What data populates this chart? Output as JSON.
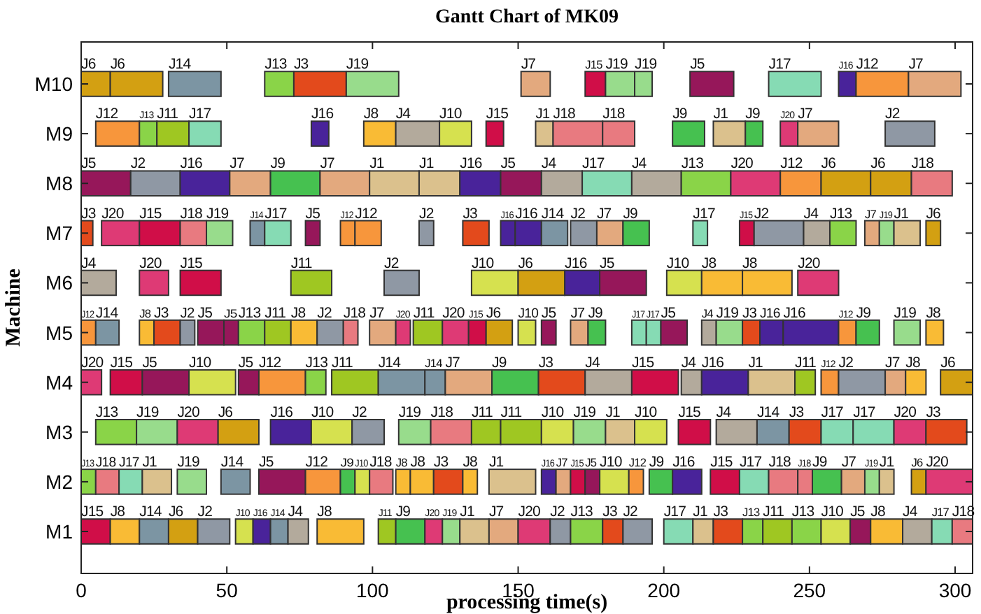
{
  "chart_data": {
    "type": "bar",
    "orientation": "horizontal",
    "title": "Gantt Chart of MK09",
    "xlabel": "processing time(s)",
    "ylabel": "Machine",
    "categories": [
      "M10",
      "M9",
      "M8",
      "M7",
      "M6",
      "M5",
      "M4",
      "M3",
      "M2",
      "M1"
    ],
    "xlim": [
      0,
      306
    ],
    "xticks": [
      0,
      50,
      100,
      150,
      200,
      250,
      300
    ],
    "series": [
      {
        "base": [
          0,
          5,
          0,
          0,
          0,
          0,
          0,
          5,
          0,
          0
        ],
        "values": [
          10,
          15,
          17,
          4,
          12,
          5,
          7,
          14,
          5,
          10
        ],
        "value_labels": [
          "J6",
          "J12",
          "J5",
          "J3",
          "J4",
          "J12",
          "J20",
          "J13",
          "J13",
          "J15"
        ],
        "colors": [
          "#d3a012",
          "#f7963c",
          "#96175a",
          "#e34a1c",
          "#b3aa9c",
          "#f7963c",
          "#de3a75",
          "#8ad448",
          "#8ad448",
          "#d00e48"
        ]
      },
      {
        "base": [
          10,
          20,
          17,
          7,
          20,
          5,
          10,
          19,
          5,
          10
        ],
        "values": [
          18,
          6,
          17,
          13,
          10,
          8,
          11,
          14,
          8,
          10
        ],
        "value_labels": [
          "J6",
          "J13",
          "J2",
          "J20",
          "J20",
          "J14",
          "J15",
          "J19",
          "J18",
          "J8"
        ],
        "colors": [
          "#d3a012",
          "#8ad448",
          "#8f98a4",
          "#de3a75",
          "#de3a75",
          "#7c95a3",
          "#d00e48",
          "#98dc8c",
          "#e87a80",
          "#f9bb35"
        ]
      },
      {
        "base": [
          30,
          26,
          34,
          20,
          34,
          20,
          21,
          33,
          13,
          20
        ],
        "values": [
          18,
          11,
          17,
          14,
          14,
          5,
          16,
          14,
          8,
          10
        ],
        "value_labels": [
          "J14",
          "J11",
          "J16",
          "J15",
          "J15",
          "J8",
          "J5",
          "J20",
          "J17",
          "J14"
        ],
        "colors": [
          "#7c95a3",
          "#9fc722",
          "#49239a",
          "#d00e48",
          "#d00e48",
          "#f9bb35",
          "#96175a",
          "#de3a75",
          "#86dbb4",
          "#7c95a3"
        ]
      },
      {
        "base": [
          63,
          37,
          51,
          34,
          72,
          25,
          37,
          47,
          21,
          30
        ],
        "values": [
          10,
          11,
          14,
          9,
          14,
          9,
          16,
          14,
          10,
          10
        ],
        "value_labels": [
          "J13",
          "J17",
          "J7",
          "J18",
          "J11",
          "J3",
          "J10",
          "J6",
          "J1",
          "J6"
        ],
        "colors": [
          "#8ad448",
          "#86dbb4",
          "#e3a97e",
          "#e87a80",
          "#9fc722",
          "#e34a1c",
          "#d6e14f",
          "#d3a012",
          "#dbc18d",
          "#d3a012"
        ]
      },
      {
        "base": [
          73,
          79,
          65,
          43,
          104,
          34,
          54,
          65,
          33,
          40
        ],
        "values": [
          18,
          6,
          17,
          9,
          12,
          5,
          7,
          14,
          10,
          11
        ],
        "value_labels": [
          "J3",
          "J16",
          "J9",
          "J19",
          "J2",
          "J2",
          "J5",
          "J16",
          "J19",
          "J2"
        ],
        "colors": [
          "#e34a1c",
          "#49239a",
          "#46c150",
          "#98dc8c",
          "#8f98a4",
          "#8f98a4",
          "#96175a",
          "#49239a",
          "#98dc8c",
          "#8f98a4"
        ]
      },
      {
        "base": [
          91,
          97,
          82,
          58,
          134,
          40,
          61,
          79,
          48,
          53
        ],
        "values": [
          18,
          11,
          17,
          5,
          16,
          9,
          16,
          14,
          10,
          6
        ],
        "value_labels": [
          "J19",
          "J8",
          "J7",
          "J14",
          "J10",
          "J5",
          "J12",
          "J10",
          "J14",
          "J10"
        ],
        "colors": [
          "#98dc8c",
          "#f9bb35",
          "#e3a97e",
          "#7c95a3",
          "#d6e14f",
          "#96175a",
          "#f7963c",
          "#d6e14f",
          "#7c95a3",
          "#d6e14f"
        ]
      },
      {
        "base": [
          151,
          108,
          99,
          63,
          150,
          49,
          77,
          93,
          61,
          59
        ],
        "values": [
          10,
          15,
          17,
          9,
          16,
          5,
          7,
          11,
          16,
          6
        ],
        "value_labels": [
          "J7",
          "J4",
          "J1",
          "J17",
          "J6",
          "J5",
          "J13",
          "J2",
          "J5",
          "J16"
        ],
        "colors": [
          "#e3a97e",
          "#b3aa9c",
          "#dbc18d",
          "#86dbb4",
          "#d3a012",
          "#96175a",
          "#8ad448",
          "#8f98a4",
          "#96175a",
          "#49239a"
        ]
      },
      {
        "base": [
          173,
          123,
          116,
          77,
          166,
          54,
          86,
          109,
          77,
          65
        ],
        "values": [
          7,
          11,
          14,
          5,
          12,
          9,
          16,
          11,
          12,
          6
        ],
        "value_labels": [
          "J15",
          "J10",
          "J1",
          "J5",
          "J16",
          "J13",
          "J11",
          "J19",
          "J12",
          "J14"
        ],
        "colors": [
          "#d00e48",
          "#d6e14f",
          "#dbc18d",
          "#96175a",
          "#49239a",
          "#8ad448",
          "#9fc722",
          "#98dc8c",
          "#f7963c",
          "#7c95a3"
        ]
      },
      {
        "base": [
          180,
          139,
          130,
          89,
          178,
          63,
          102,
          120,
          89,
          71
        ],
        "values": [
          10,
          6,
          14,
          5,
          16,
          9,
          16,
          14,
          5,
          7
        ],
        "value_labels": [
          "J19",
          "J15",
          "J16",
          "J12",
          "J5",
          "J11",
          "J14",
          "J18",
          "J9",
          "J4"
        ],
        "colors": [
          "#98dc8c",
          "#d00e48",
          "#49239a",
          "#f7963c",
          "#96175a",
          "#9fc722",
          "#7c95a3",
          "#e87a80",
          "#46c150",
          "#b3aa9c"
        ]
      },
      {
        "base": [
          190,
          156,
          144,
          94,
          201,
          72,
          118,
          134,
          94,
          81
        ],
        "values": [
          6,
          6,
          14,
          9,
          12,
          9,
          7,
          10,
          5,
          16
        ],
        "value_labels": [
          "J19",
          "J1",
          "J5",
          "J12",
          "J10",
          "J8",
          "J14",
          "J11",
          "J10",
          "J8"
        ],
        "colors": [
          "#98dc8c",
          "#dbc18d",
          "#96175a",
          "#f7963c",
          "#d6e14f",
          "#f9bb35",
          "#7c95a3",
          "#9fc722",
          "#d6e14f",
          "#f9bb35"
        ]
      },
      {
        "base": [
          209,
          162,
          158,
          116,
          213,
          81,
          125,
          144,
          99,
          102
        ],
        "values": [
          15,
          17,
          14,
          5,
          14,
          9,
          16,
          14,
          8,
          6
        ],
        "value_labels": [
          "J5",
          "J18",
          "J4",
          "J2",
          "J8",
          "J2",
          "J7",
          "J11",
          "J18",
          "J11"
        ],
        "colors": [
          "#96175a",
          "#e87a80",
          "#b3aa9c",
          "#8f98a4",
          "#f9bb35",
          "#8f98a4",
          "#e3a97e",
          "#9fc722",
          "#e87a80",
          "#9fc722"
        ]
      },
      {
        "base": [
          236,
          179,
          172,
          131,
          227,
          90,
          141,
          158,
          108,
          108
        ],
        "values": [
          18,
          11,
          17,
          9,
          17,
          5,
          16,
          11,
          5,
          10
        ],
        "value_labels": [
          "J17",
          "J18",
          "J17",
          "J3",
          "J8",
          "J18",
          "J9",
          "J10",
          "J8",
          "J9"
        ],
        "colors": [
          "#86dbb4",
          "#e87a80",
          "#86dbb4",
          "#e34a1c",
          "#f9bb35",
          "#e87a80",
          "#46c150",
          "#d6e14f",
          "#f9bb35",
          "#46c150"
        ]
      },
      {
        "base": [
          260,
          203,
          189,
          144,
          246,
          99,
          157,
          169,
          113,
          118
        ],
        "values": [
          6,
          11,
          17,
          5,
          14,
          9,
          16,
          11,
          8,
          6
        ],
        "value_labels": [
          "J16",
          "J9",
          "J4",
          "J16",
          "J20",
          "J7",
          "J3",
          "J19",
          "J8",
          "J20"
        ],
        "colors": [
          "#49239a",
          "#46c150",
          "#b3aa9c",
          "#49239a",
          "#de3a75",
          "#e3a97e",
          "#e34a1c",
          "#98dc8c",
          "#f9bb35",
          "#de3a75"
        ]
      },
      {
        "base": [
          266,
          217,
          206,
          149,
          null,
          108,
          173,
          180,
          121,
          124
        ],
        "values": [
          18,
          11,
          17,
          9,
          null,
          5,
          16,
          10,
          10,
          6
        ],
        "value_labels": [
          "J12",
          "J1",
          "J13",
          "J16",
          null,
          "J20",
          "J4",
          "J1",
          "J3",
          "J19"
        ],
        "colors": [
          "#f7963c",
          "#dbc18d",
          "#8ad448",
          "#49239a",
          null,
          "#de3a75",
          "#b3aa9c",
          "#dbc18d",
          "#e34a1c",
          "#98dc8c"
        ]
      },
      {
        "base": [
          284,
          228,
          223,
          158,
          null,
          114,
          189,
          190,
          131,
          130
        ],
        "values": [
          18,
          6,
          17,
          9,
          null,
          10,
          16,
          11,
          5,
          10
        ],
        "value_labels": [
          "J7",
          "J9",
          "J20",
          "J14",
          null,
          "J11",
          "J15",
          "J10",
          "J8",
          "J1"
        ],
        "colors": [
          "#e3a97e",
          "#46c150",
          "#de3a75",
          "#7c95a3",
          null,
          "#9fc722",
          "#d00e48",
          "#d6e14f",
          "#f9bb35",
          "#dbc18d"
        ]
      },
      {
        "base": [
          null,
          240,
          240,
          168,
          null,
          124,
          206,
          205,
          140,
          140
        ],
        "values": [
          null,
          6,
          14,
          9,
          null,
          9,
          7,
          11,
          16,
          10
        ],
        "value_labels": [
          null,
          "J20",
          "J12",
          "J2",
          null,
          "J20",
          "J4",
          "J15",
          "J1",
          "J7"
        ],
        "colors": [
          null,
          "#de3a75",
          "#f7963c",
          "#8f98a4",
          null,
          "#de3a75",
          "#b3aa9c",
          "#d00e48",
          "#dbc18d",
          "#e3a97e"
        ]
      },
      {
        "base": [
          null,
          246,
          254,
          177,
          null,
          133,
          213,
          218,
          158,
          150
        ],
        "values": [
          null,
          14,
          17,
          9,
          null,
          6,
          16,
          14,
          5,
          11
        ],
        "value_labels": [
          null,
          "J7",
          "J6",
          "J7",
          null,
          "J15",
          "J16",
          "J4",
          "J16",
          "J20"
        ],
        "colors": [
          null,
          "#e3a97e",
          "#d3a012",
          "#e3a97e",
          null,
          "#d00e48",
          "#49239a",
          "#b3aa9c",
          "#49239a",
          "#de3a75"
        ]
      },
      {
        "base": [
          null,
          276,
          271,
          186,
          null,
          139,
          229,
          232,
          163,
          161
        ],
        "values": [
          null,
          17,
          14,
          9,
          null,
          9,
          16,
          11,
          5,
          7
        ],
        "value_labels": [
          null,
          "J2",
          "J6",
          "J9",
          null,
          "J6",
          "J1",
          "J14",
          "J7",
          "J2"
        ],
        "colors": [
          null,
          "#8f98a4",
          "#d3a012",
          "#46c150",
          null,
          "#d3a012",
          "#dbc18d",
          "#7c95a3",
          "#e3a97e",
          "#8f98a4"
        ]
      },
      {
        "base": [
          null,
          null,
          285,
          210,
          null,
          150,
          245,
          243,
          168,
          168
        ],
        "values": [
          null,
          null,
          14,
          5,
          null,
          6,
          7,
          11,
          5,
          11
        ],
        "value_labels": [
          null,
          null,
          "J18",
          "J17",
          null,
          "J10",
          "J11",
          "J3",
          "J15",
          "J13"
        ],
        "colors": [
          null,
          null,
          "#e87a80",
          "#86dbb4",
          null,
          "#d6e14f",
          "#9fc722",
          "#e34a1c",
          "#d00e48",
          "#8ad448"
        ]
      },
      {
        "base": [
          null,
          null,
          null,
          226,
          null,
          158,
          254,
          254,
          173,
          179
        ],
        "values": [
          null,
          null,
          null,
          5,
          null,
          5,
          6,
          11,
          5,
          7
        ],
        "value_labels": [
          null,
          null,
          null,
          "J15",
          null,
          "J5",
          "J12",
          "J17",
          "J5",
          "J3"
        ],
        "colors": [
          null,
          null,
          null,
          "#d00e48",
          null,
          "#96175a",
          "#f7963c",
          "#86dbb4",
          "#96175a",
          "#e34a1c"
        ]
      },
      {
        "base": [
          null,
          null,
          null,
          231,
          null,
          168,
          260,
          265,
          178,
          186
        ],
        "values": [
          null,
          null,
          null,
          17,
          null,
          6,
          16,
          14,
          10,
          10
        ],
        "value_labels": [
          null,
          null,
          null,
          "J2",
          null,
          "J7",
          "J2",
          "J17",
          "J10",
          "J2"
        ],
        "colors": [
          null,
          null,
          null,
          "#8f98a4",
          null,
          "#e3a97e",
          "#8f98a4",
          "#86dbb4",
          "#d6e14f",
          "#8f98a4"
        ]
      },
      {
        "base": [
          null,
          null,
          null,
          248,
          null,
          174,
          276,
          279,
          188,
          200
        ],
        "values": [
          null,
          null,
          null,
          9,
          null,
          6,
          7,
          11,
          5,
          10
        ],
        "value_labels": [
          null,
          null,
          null,
          "J4",
          null,
          "J9",
          "J7",
          "J20",
          "J12",
          "J17"
        ],
        "colors": [
          null,
          null,
          null,
          "#b3aa9c",
          null,
          "#46c150",
          "#e3a97e",
          "#de3a75",
          "#f7963c",
          "#86dbb4"
        ]
      },
      {
        "base": [
          null,
          null,
          null,
          257,
          null,
          189,
          283,
          290,
          195,
          210
        ],
        "values": [
          null,
          null,
          null,
          9,
          null,
          5,
          7,
          14,
          8,
          7
        ],
        "value_labels": [
          null,
          null,
          null,
          "J13",
          null,
          "J17",
          "J8",
          "J3",
          "J9",
          "J1"
        ],
        "colors": [
          null,
          null,
          null,
          "#8ad448",
          null,
          "#86dbb4",
          "#f9bb35",
          "#e34a1c",
          "#46c150",
          "#dbc18d"
        ]
      },
      {
        "base": [
          null,
          null,
          null,
          269,
          null,
          194,
          295,
          null,
          203,
          217
        ],
        "values": [
          null,
          null,
          null,
          5,
          null,
          5,
          11,
          null,
          10,
          10
        ],
        "value_labels": [
          null,
          null,
          null,
          "J7",
          null,
          "J17",
          "J6",
          null,
          "J16",
          "J3"
        ],
        "colors": [
          null,
          null,
          null,
          "#e3a97e",
          null,
          "#86dbb4",
          "#d3a012",
          null,
          "#49239a",
          "#e34a1c"
        ]
      },
      {
        "base": [
          null,
          null,
          null,
          274,
          null,
          199,
          null,
          null,
          216,
          227
        ],
        "values": [
          null,
          null,
          null,
          5,
          null,
          9,
          null,
          null,
          10,
          7
        ],
        "value_labels": [
          null,
          null,
          null,
          "J19",
          null,
          "J5",
          null,
          null,
          "J15",
          "J13"
        ],
        "colors": [
          null,
          null,
          null,
          "#98dc8c",
          null,
          "#96175a",
          null,
          null,
          "#d00e48",
          "#8ad448"
        ]
      },
      {
        "base": [
          null,
          null,
          null,
          279,
          null,
          213,
          null,
          null,
          226,
          234
        ],
        "values": [
          null,
          null,
          null,
          9,
          null,
          5,
          null,
          null,
          10,
          10
        ],
        "value_labels": [
          null,
          null,
          null,
          "J1",
          null,
          "J4",
          null,
          null,
          "J17",
          "J11"
        ],
        "colors": [
          null,
          null,
          null,
          "#dbc18d",
          null,
          "#b3aa9c",
          null,
          null,
          "#86dbb4",
          "#9fc722"
        ]
      },
      {
        "base": [
          null,
          null,
          null,
          290,
          null,
          218,
          null,
          null,
          236,
          244
        ],
        "values": [
          null,
          null,
          null,
          5,
          null,
          9,
          null,
          null,
          10,
          10
        ],
        "value_labels": [
          null,
          null,
          null,
          "J6",
          null,
          "J19",
          null,
          null,
          "J18",
          "J13"
        ],
        "colors": [
          null,
          null,
          null,
          "#d3a012",
          null,
          "#98dc8c",
          null,
          null,
          "#e87a80",
          "#8ad448"
        ]
      },
      {
        "base": [
          null,
          null,
          null,
          null,
          null,
          227,
          null,
          null,
          246,
          254
        ],
        "values": [
          null,
          null,
          null,
          null,
          null,
          6,
          null,
          null,
          5,
          10
        ],
        "value_labels": [
          null,
          null,
          null,
          null,
          null,
          "J3",
          null,
          null,
          "J18",
          "J10"
        ],
        "colors": [
          null,
          null,
          null,
          null,
          null,
          "#e34a1c",
          null,
          null,
          "#e87a80",
          "#d6e14f"
        ]
      },
      {
        "base": [
          null,
          null,
          null,
          null,
          null,
          233,
          null,
          null,
          251,
          264
        ],
        "values": [
          null,
          null,
          null,
          null,
          null,
          8,
          null,
          null,
          10,
          7
        ],
        "value_labels": [
          null,
          null,
          null,
          null,
          null,
          "J16",
          null,
          null,
          "J9",
          "J5"
        ],
        "colors": [
          null,
          null,
          null,
          null,
          null,
          "#49239a",
          null,
          null,
          "#46c150",
          "#96175a"
        ]
      },
      {
        "base": [
          null,
          null,
          null,
          null,
          null,
          241,
          null,
          null,
          261,
          271
        ],
        "values": [
          null,
          null,
          null,
          null,
          null,
          19,
          null,
          null,
          8,
          11
        ],
        "value_labels": [
          null,
          null,
          null,
          null,
          null,
          "J16",
          null,
          null,
          "J7",
          "J8"
        ],
        "colors": [
          null,
          null,
          null,
          null,
          null,
          "#49239a",
          null,
          null,
          "#e3a97e",
          "#f9bb35"
        ]
      },
      {
        "base": [
          null,
          null,
          null,
          null,
          null,
          260,
          null,
          null,
          269,
          282
        ],
        "values": [
          null,
          null,
          null,
          null,
          null,
          6,
          null,
          null,
          5,
          10
        ],
        "value_labels": [
          null,
          null,
          null,
          null,
          null,
          "J12",
          null,
          null,
          "J19",
          "J4"
        ],
        "colors": [
          null,
          null,
          null,
          null,
          null,
          "#f7963c",
          null,
          null,
          "#98dc8c",
          "#b3aa9c"
        ]
      },
      {
        "base": [
          null,
          null,
          null,
          null,
          null,
          266,
          null,
          null,
          274,
          292
        ],
        "values": [
          null,
          null,
          null,
          null,
          null,
          8,
          null,
          null,
          5,
          7
        ],
        "value_labels": [
          null,
          null,
          null,
          null,
          null,
          "J9",
          null,
          null,
          "J1",
          "J17"
        ],
        "colors": [
          null,
          null,
          null,
          null,
          null,
          "#46c150",
          null,
          null,
          "#dbc18d",
          "#86dbb4"
        ]
      },
      {
        "base": [
          null,
          null,
          null,
          null,
          null,
          279,
          null,
          null,
          285,
          299
        ],
        "values": [
          null,
          null,
          null,
          null,
          null,
          9,
          null,
          null,
          5,
          7
        ],
        "value_labels": [
          null,
          null,
          null,
          null,
          null,
          "J19",
          null,
          null,
          "J6",
          "J18"
        ],
        "colors": [
          null,
          null,
          null,
          null,
          null,
          "#98dc8c",
          null,
          null,
          "#d3a012",
          "#e87a80"
        ]
      },
      {
        "base": [
          null,
          null,
          null,
          null,
          null,
          290,
          null,
          null,
          290,
          null
        ],
        "values": [
          null,
          null,
          null,
          null,
          null,
          6,
          null,
          null,
          16,
          null
        ],
        "value_labels": [
          null,
          null,
          null,
          null,
          null,
          "J8",
          null,
          null,
          "J20",
          null
        ],
        "colors": [
          null,
          null,
          null,
          null,
          null,
          "#f9bb35",
          null,
          null,
          "#de3a75",
          null
        ]
      }
    ]
  }
}
